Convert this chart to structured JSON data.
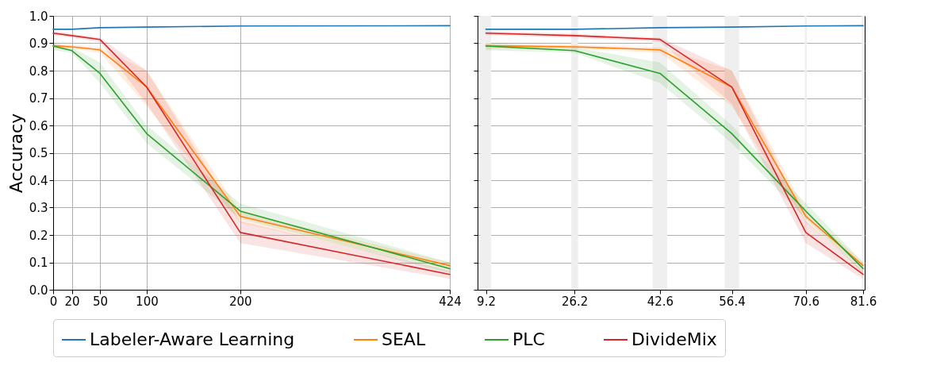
{
  "chart_data": [
    {
      "type": "line",
      "ylabel": "Accuracy",
      "x": [
        0,
        20,
        50,
        100,
        200,
        424
      ],
      "xlim": [
        0,
        424
      ],
      "xticks": [
        0,
        20,
        50,
        100,
        200,
        424
      ],
      "ylim": [
        0,
        1
      ],
      "yticks": [
        {
          "value": 0,
          "label": "0.0"
        },
        0.1,
        0.2,
        0.3,
        0.4,
        0.5,
        0.6,
        0.7,
        0.8,
        0.9,
        {
          "value": 1,
          "label": "1.0"
        }
      ],
      "grid": true,
      "legend": "bottom",
      "series": [
        {
          "name": "Labeler-Aware Learning",
          "color": "#1f77b4",
          "values": [
            0.951,
            0.951,
            0.957,
            0.959,
            0.963,
            0.964
          ]
        },
        {
          "name": "SEAL",
          "color": "#ff7f0e",
          "values": [
            0.891,
            0.887,
            0.876,
            0.74,
            0.268,
            0.088
          ],
          "lower": [
            0.88,
            0.88,
            0.865,
            0.67,
            0.245,
            0.075
          ],
          "upper": [
            0.9,
            0.895,
            0.885,
            0.8,
            0.285,
            0.1
          ]
        },
        {
          "name": "PLC",
          "color": "#2ca02c",
          "values": [
            0.89,
            0.873,
            0.79,
            0.57,
            0.287,
            0.077
          ],
          "lower": [
            0.875,
            0.865,
            0.755,
            0.535,
            0.26,
            0.06
          ],
          "upper": [
            0.9,
            0.885,
            0.83,
            0.6,
            0.315,
            0.1
          ]
        },
        {
          "name": "DivideMix",
          "color": "#d62728",
          "values": [
            0.937,
            0.928,
            0.914,
            0.74,
            0.209,
            0.056
          ],
          "lower": [
            0.93,
            0.92,
            0.905,
            0.68,
            0.17,
            0.04
          ],
          "upper": [
            0.945,
            0.935,
            0.92,
            0.8,
            0.25,
            0.07
          ]
        }
      ]
    },
    {
      "type": "line",
      "x": [
        9.2,
        26.2,
        42.6,
        56.4,
        70.6,
        81.6
      ],
      "xlim": [
        7.6,
        81.9
      ],
      "xticks": [
        9.2,
        26.2,
        42.6,
        56.4,
        70.6,
        81.6
      ],
      "ylim": [
        0,
        1
      ],
      "yticks": [
        {
          "value": 0,
          "label": null
        },
        {
          "value": 0.1,
          "label": null
        },
        {
          "value": 0.2,
          "label": null
        },
        {
          "value": 0.3,
          "label": null
        },
        {
          "value": 0.4,
          "label": null
        },
        {
          "value": 0.5,
          "label": null
        },
        {
          "value": 0.6,
          "label": null
        },
        {
          "value": 0.7,
          "label": null
        },
        {
          "value": 0.8,
          "label": null
        },
        {
          "value": 0.9,
          "label": null
        },
        {
          "value": 1,
          "label": null
        }
      ],
      "grid": true,
      "tick_labels": "x",
      "bands": [
        {
          "axis": "x",
          "from": 8.1,
          "to": 10.2,
          "color": "#efefef"
        },
        {
          "axis": "x",
          "from": 25.6,
          "to": 26.9,
          "color": "#efefef"
        },
        {
          "axis": "x",
          "from": 41.2,
          "to": 44.0,
          "color": "#efefef"
        },
        {
          "axis": "x",
          "from": 55.0,
          "to": 57.8,
          "color": "#efefef"
        },
        {
          "axis": "x",
          "from": 70.4,
          "to": 70.8,
          "color": "#efefef"
        },
        {
          "axis": "x",
          "from": 81.35,
          "to": 81.85,
          "color": "#efefef"
        }
      ],
      "series": [
        {
          "name": "Labeler-Aware Learning",
          "color": "#1f77b4",
          "values": [
            0.951,
            0.951,
            0.957,
            0.959,
            0.963,
            0.964
          ]
        },
        {
          "name": "SEAL",
          "color": "#ff7f0e",
          "values": [
            0.891,
            0.887,
            0.876,
            0.74,
            0.268,
            0.088
          ],
          "lower": [
            0.88,
            0.88,
            0.865,
            0.67,
            0.245,
            0.075
          ],
          "upper": [
            0.9,
            0.895,
            0.885,
            0.8,
            0.285,
            0.1
          ]
        },
        {
          "name": "PLC",
          "color": "#2ca02c",
          "values": [
            0.89,
            0.873,
            0.79,
            0.57,
            0.287,
            0.077
          ],
          "lower": [
            0.875,
            0.865,
            0.755,
            0.535,
            0.26,
            0.06
          ],
          "upper": [
            0.9,
            0.885,
            0.83,
            0.6,
            0.315,
            0.1
          ]
        },
        {
          "name": "DivideMix",
          "color": "#d62728",
          "values": [
            0.937,
            0.928,
            0.914,
            0.74,
            0.209,
            0.056
          ],
          "lower": [
            0.93,
            0.92,
            0.905,
            0.68,
            0.17,
            0.04
          ],
          "upper": [
            0.945,
            0.935,
            0.92,
            0.8,
            0.25,
            0.07
          ]
        }
      ]
    }
  ]
}
